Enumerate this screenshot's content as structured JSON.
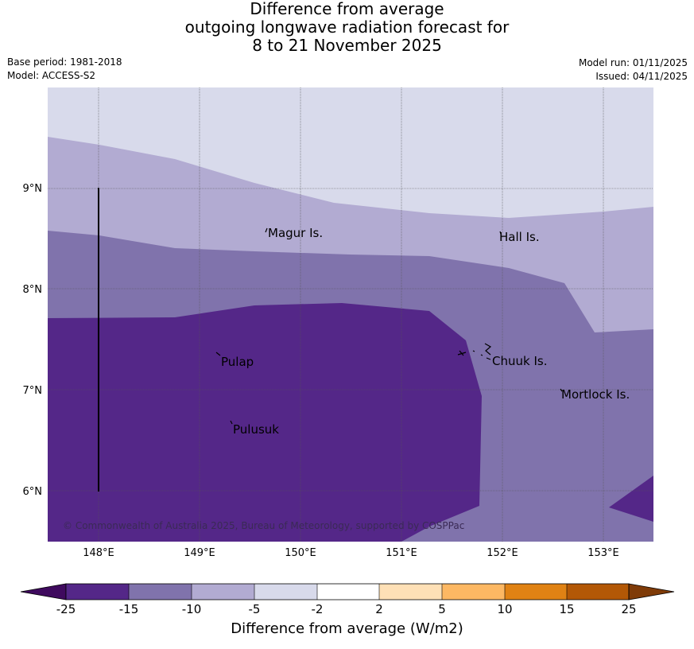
{
  "title": {
    "line1": "Difference from average",
    "line2": "outgoing longwave radiation forecast for",
    "line3": "8 to 21 November 2025"
  },
  "meta": {
    "base_period": "Base period: 1981-2018",
    "model": "Model: ACCESS-S2",
    "model_run": "Model run: 01/11/2025",
    "issued": "Issued: 04/11/2025"
  },
  "map": {
    "lon_range": [
      147.5,
      153.5
    ],
    "lat_range": [
      5.5,
      10.0
    ],
    "lon_ticks": [
      "148°E",
      "149°E",
      "150°E",
      "151°E",
      "152°E",
      "153°E"
    ],
    "lat_ticks": [
      "9°N",
      "8°N",
      "7°N",
      "6°N"
    ],
    "places": [
      {
        "name": "Magur Is."
      },
      {
        "name": "Hall Is."
      },
      {
        "name": "Pulap"
      },
      {
        "name": "Chuuk Is."
      },
      {
        "name": "Mortlock Is."
      },
      {
        "name": "Pulusuk"
      }
    ],
    "copyright": "© Commonwealth of Australia 2025, Bureau of Meteorology, supported by COSPPac"
  },
  "colorbar": {
    "label": "Difference from average (W/m2)",
    "ticks": [
      "-25",
      "-15",
      "-10",
      "-5",
      "-2",
      "2",
      "5",
      "10",
      "15",
      "25"
    ],
    "colors": {
      "below": "#3f0a5e",
      "c1": "#542788",
      "c2": "#8073ac",
      "c3": "#b2abd2",
      "c4": "#d8daeb",
      "c5": "#ffffff",
      "c6": "#fee0b6",
      "c7": "#fdb863",
      "c8": "#e08214",
      "c9": "#b35806",
      "above": "#7f3b08"
    }
  }
}
